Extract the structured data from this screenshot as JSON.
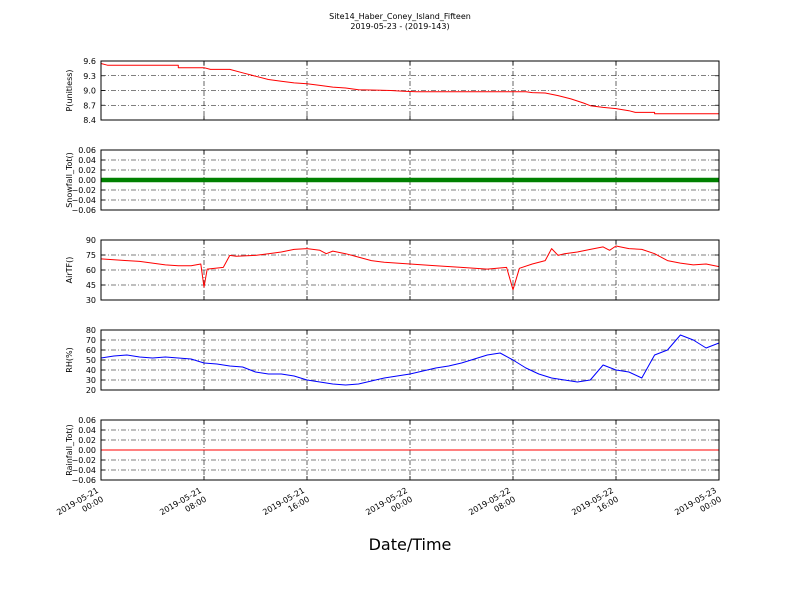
{
  "chart_data": {
    "type": "line",
    "title": "Site14_Haber_Coney_Island_Fifteen",
    "subtitle": "2019-05-23 - (2019-143)",
    "xlabel": "Date/Time",
    "x_range": [
      "2019-05-21 00:00",
      "2019-05-23 00:00"
    ],
    "x_ticks": [
      {
        "t": "2019-05-21 00:00",
        "line1": "2019-05-21",
        "line2": "00:00"
      },
      {
        "t": "2019-05-21 08:00",
        "line1": "2019-05-21",
        "line2": "08:00"
      },
      {
        "t": "2019-05-21 16:00",
        "line1": "2019-05-21",
        "line2": "16:00"
      },
      {
        "t": "2019-05-22 00:00",
        "line1": "2019-05-22",
        "line2": "00:00"
      },
      {
        "t": "2019-05-22 08:00",
        "line1": "2019-05-22",
        "line2": "08:00"
      },
      {
        "t": "2019-05-22 16:00",
        "line1": "2019-05-22",
        "line2": "16:00"
      },
      {
        "t": "2019-05-23 00:00",
        "line1": "2019-05-23",
        "line2": "00:00"
      }
    ],
    "grid": true,
    "panels": [
      {
        "ylabel": "P(unitless)",
        "ylim": [
          8.4,
          9.8
        ],
        "yticks": [
          "8.4",
          "8.7",
          "9.0",
          "9.3",
          "9.6"
        ],
        "color": "#ff0000",
        "style": "line",
        "series": [
          {
            "values": [
              [
                "2019-05-21 00:00",
                9.74
              ],
              [
                "2019-05-21 00:30",
                9.7
              ],
              [
                "2019-05-21 06:00",
                9.7
              ],
              [
                "2019-05-21 06:00",
                9.64
              ],
              [
                "2019-05-21 08:00",
                9.64
              ],
              [
                "2019-05-21 08:30",
                9.6
              ],
              [
                "2019-05-21 10:00",
                9.6
              ],
              [
                "2019-05-21 11:00",
                9.52
              ],
              [
                "2019-05-21 12:00",
                9.44
              ],
              [
                "2019-05-21 13:00",
                9.36
              ],
              [
                "2019-05-21 14:00",
                9.32
              ],
              [
                "2019-05-21 15:00",
                9.28
              ],
              [
                "2019-05-21 16:00",
                9.26
              ],
              [
                "2019-05-21 17:00",
                9.22
              ],
              [
                "2019-05-21 18:00",
                9.18
              ],
              [
                "2019-05-21 19:00",
                9.16
              ],
              [
                "2019-05-21 20:00",
                9.12
              ],
              [
                "2019-05-21 22:30",
                9.1
              ],
              [
                "2019-05-21 23:30",
                9.08
              ],
              [
                "2019-05-22 00:30",
                9.07
              ],
              [
                "2019-05-22 09:00",
                9.07
              ],
              [
                "2019-05-22 09:30",
                9.05
              ],
              [
                "2019-05-22 10:30",
                9.04
              ],
              [
                "2019-05-22 11:30",
                8.98
              ],
              [
                "2019-05-22 12:30",
                8.9
              ],
              [
                "2019-05-22 13:30",
                8.8
              ],
              [
                "2019-05-22 14:00",
                8.74
              ],
              [
                "2019-05-22 15:00",
                8.7
              ],
              [
                "2019-05-22 16:00",
                8.67
              ],
              [
                "2019-05-22 17:00",
                8.62
              ],
              [
                "2019-05-22 17:30",
                8.58
              ],
              [
                "2019-05-22 19:00",
                8.58
              ],
              [
                "2019-05-22 19:00",
                8.55
              ],
              [
                "2019-05-23 00:00",
                8.55
              ]
            ]
          }
        ]
      },
      {
        "ylabel": "Snowfall_Tot()",
        "ylim": [
          -0.06,
          0.06
        ],
        "yticks": [
          "−0.06",
          "−0.04",
          "−0.02",
          "0.00",
          "0.02",
          "0.04",
          "0.06"
        ],
        "color": "#008000",
        "style": "marker-line",
        "series": [
          {
            "values": [
              [
                "2019-05-21 00:00",
                0.0
              ],
              [
                "2019-05-23 00:00",
                0.0
              ]
            ]
          }
        ]
      },
      {
        "ylabel": "AirTF()",
        "ylim": [
          20,
          90
        ],
        "yticks": [
          "30",
          "45",
          "60",
          "75",
          "90"
        ],
        "color": "#ff0000",
        "style": "line",
        "series": [
          {
            "values": [
              [
                "2019-05-21 00:00",
                68
              ],
              [
                "2019-05-21 01:00",
                67
              ],
              [
                "2019-05-21 02:00",
                66
              ],
              [
                "2019-05-21 03:00",
                65
              ],
              [
                "2019-05-21 04:00",
                63
              ],
              [
                "2019-05-21 05:00",
                61
              ],
              [
                "2019-05-21 06:00",
                60
              ],
              [
                "2019-05-21 07:00",
                60
              ],
              [
                "2019-05-21 07:45",
                62
              ],
              [
                "2019-05-21 08:00",
                35
              ],
              [
                "2019-05-21 08:15",
                56
              ],
              [
                "2019-05-21 09:30",
                58
              ],
              [
                "2019-05-21 10:00",
                72
              ],
              [
                "2019-05-21 10:30",
                71
              ],
              [
                "2019-05-21 12:00",
                72
              ],
              [
                "2019-05-21 13:00",
                74
              ],
              [
                "2019-05-21 14:00",
                76
              ],
              [
                "2019-05-21 15:00",
                79
              ],
              [
                "2019-05-21 16:00",
                80
              ],
              [
                "2019-05-21 17:00",
                78
              ],
              [
                "2019-05-21 17:30",
                74
              ],
              [
                "2019-05-21 18:00",
                77
              ],
              [
                "2019-05-21 19:00",
                74
              ],
              [
                "2019-05-21 20:00",
                70
              ],
              [
                "2019-05-21 21:00",
                66
              ],
              [
                "2019-05-21 22:00",
                64
              ],
              [
                "2019-05-21 23:00",
                63
              ],
              [
                "2019-05-22 00:00",
                62
              ],
              [
                "2019-05-22 02:00",
                60
              ],
              [
                "2019-05-22 04:00",
                58
              ],
              [
                "2019-05-22 06:00",
                56
              ],
              [
                "2019-05-22 07:30",
                58
              ],
              [
                "2019-05-22 08:00",
                32
              ],
              [
                "2019-05-22 08:30",
                57
              ],
              [
                "2019-05-22 09:30",
                62
              ],
              [
                "2019-05-22 10:30",
                66
              ],
              [
                "2019-05-22 11:00",
                80
              ],
              [
                "2019-05-22 11:30",
                72
              ],
              [
                "2019-05-22 12:00",
                74
              ],
              [
                "2019-05-22 13:00",
                76
              ],
              [
                "2019-05-22 14:00",
                79
              ],
              [
                "2019-05-22 15:00",
                82
              ],
              [
                "2019-05-22 15:30",
                78
              ],
              [
                "2019-05-22 16:00",
                83
              ],
              [
                "2019-05-22 17:00",
                80
              ],
              [
                "2019-05-22 18:00",
                79
              ],
              [
                "2019-05-22 19:00",
                74
              ],
              [
                "2019-05-22 20:00",
                66
              ],
              [
                "2019-05-22 21:00",
                63
              ],
              [
                "2019-05-22 22:00",
                61
              ],
              [
                "2019-05-22 23:00",
                62
              ],
              [
                "2019-05-23 00:00",
                59
              ]
            ]
          }
        ]
      },
      {
        "ylabel": "RH(%)",
        "ylim": [
          20,
          80
        ],
        "yticks": [
          "20",
          "30",
          "40",
          "50",
          "60",
          "70",
          "80"
        ],
        "color": "#0000ff",
        "style": "line",
        "series": [
          {
            "values": [
              [
                "2019-05-21 00:00",
                52
              ],
              [
                "2019-05-21 01:00",
                54
              ],
              [
                "2019-05-21 02:00",
                55
              ],
              [
                "2019-05-21 03:00",
                53
              ],
              [
                "2019-05-21 04:00",
                52
              ],
              [
                "2019-05-21 05:00",
                53
              ],
              [
                "2019-05-21 06:00",
                52
              ],
              [
                "2019-05-21 07:00",
                51
              ],
              [
                "2019-05-21 08:00",
                47
              ],
              [
                "2019-05-21 09:00",
                46
              ],
              [
                "2019-05-21 10:00",
                44
              ],
              [
                "2019-05-21 11:00",
                43
              ],
              [
                "2019-05-21 12:00",
                38
              ],
              [
                "2019-05-21 13:00",
                36
              ],
              [
                "2019-05-21 14:00",
                36
              ],
              [
                "2019-05-21 15:00",
                34
              ],
              [
                "2019-05-21 16:00",
                30
              ],
              [
                "2019-05-21 17:00",
                28
              ],
              [
                "2019-05-21 18:00",
                26
              ],
              [
                "2019-05-21 19:00",
                25
              ],
              [
                "2019-05-21 20:00",
                26
              ],
              [
                "2019-05-21 21:00",
                29
              ],
              [
                "2019-05-21 22:00",
                32
              ],
              [
                "2019-05-21 23:00",
                34
              ],
              [
                "2019-05-22 00:00",
                36
              ],
              [
                "2019-05-22 01:00",
                39
              ],
              [
                "2019-05-22 02:00",
                42
              ],
              [
                "2019-05-22 03:00",
                44
              ],
              [
                "2019-05-22 04:00",
                47
              ],
              [
                "2019-05-22 05:00",
                51
              ],
              [
                "2019-05-22 06:00",
                55
              ],
              [
                "2019-05-22 07:00",
                57
              ],
              [
                "2019-05-22 08:00",
                50
              ],
              [
                "2019-05-22 09:00",
                42
              ],
              [
                "2019-05-22 10:00",
                36
              ],
              [
                "2019-05-22 11:00",
                32
              ],
              [
                "2019-05-22 12:00",
                30
              ],
              [
                "2019-05-22 13:00",
                28
              ],
              [
                "2019-05-22 14:00",
                30
              ],
              [
                "2019-05-22 15:00",
                45
              ],
              [
                "2019-05-22 16:00",
                40
              ],
              [
                "2019-05-22 17:00",
                38
              ],
              [
                "2019-05-22 18:00",
                32
              ],
              [
                "2019-05-22 19:00",
                55
              ],
              [
                "2019-05-22 20:00",
                60
              ],
              [
                "2019-05-22 21:00",
                75
              ],
              [
                "2019-05-22 22:00",
                70
              ],
              [
                "2019-05-22 23:00",
                62
              ],
              [
                "2019-05-23 00:00",
                67
              ]
            ]
          }
        ]
      },
      {
        "ylabel": "Rainfall_Tot()",
        "ylim": [
          -0.06,
          0.06
        ],
        "yticks": [
          "−0.06",
          "−0.04",
          "−0.02",
          "0.00",
          "0.02",
          "0.04",
          "0.06"
        ],
        "color": "#ff0000",
        "style": "line",
        "series": [
          {
            "values": [
              [
                "2019-05-21 00:00",
                0.0
              ],
              [
                "2019-05-23 00:00",
                0.0
              ]
            ]
          }
        ]
      }
    ]
  }
}
